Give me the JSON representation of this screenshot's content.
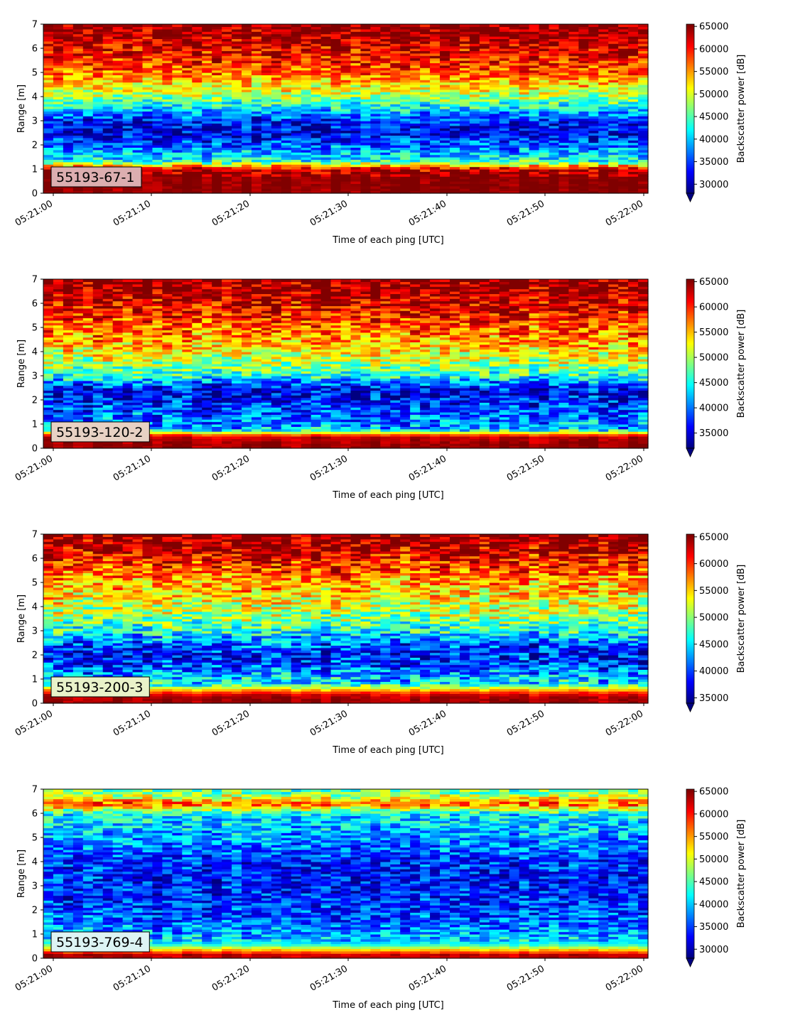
{
  "chart_data": [
    {
      "type": "heatmap",
      "station_label": "55193-67-1",
      "station_label_bg": "#dcaeb0",
      "xlabel": "Time of each ping [UTC]",
      "ylabel": "Range [m]",
      "colorbar_label": "Backscatter power [dB]",
      "colormap": "jet",
      "x_tick_labels": [
        "05:21:00",
        "05:21:10",
        "05:21:20",
        "05:21:30",
        "05:21:40",
        "05:21:50",
        "05:22:00"
      ],
      "y_ticks": [
        0,
        1,
        2,
        3,
        4,
        5,
        6,
        7
      ],
      "xlim": [
        "05:20:59",
        "05:22:00"
      ],
      "ylim": [
        0,
        7
      ],
      "colorbar_ticks": [
        30000,
        35000,
        40000,
        45000,
        50000,
        55000,
        60000,
        65000
      ],
      "clim": [
        28000,
        65500
      ],
      "colorbar_extend": "min",
      "profile": [
        {
          "range_m": 0.2,
          "value": 64800
        },
        {
          "range_m": 0.6,
          "value": 65000
        },
        {
          "range_m": 1.0,
          "value": 63500
        },
        {
          "range_m": 1.3,
          "value": 44000
        },
        {
          "range_m": 1.6,
          "value": 40000
        },
        {
          "range_m": 2.0,
          "value": 36000
        },
        {
          "range_m": 2.5,
          "value": 31500
        },
        {
          "range_m": 3.0,
          "value": 33500
        },
        {
          "range_m": 3.5,
          "value": 41000
        },
        {
          "range_m": 4.0,
          "value": 47500
        },
        {
          "range_m": 4.5,
          "value": 52500
        },
        {
          "range_m": 5.0,
          "value": 57000
        },
        {
          "range_m": 5.5,
          "value": 60000
        },
        {
          "range_m": 6.0,
          "value": 61500
        },
        {
          "range_m": 6.5,
          "value": 64000
        },
        {
          "range_m": 7.0,
          "value": 65000
        }
      ]
    },
    {
      "type": "heatmap",
      "station_label": "55193-120-2",
      "station_label_bg": "#e8d2c4",
      "xlabel": "Time of each ping [UTC]",
      "ylabel": "Range [m]",
      "colorbar_label": "Backscatter power [dB]",
      "colormap": "jet",
      "x_tick_labels": [
        "05:21:00",
        "05:21:10",
        "05:21:20",
        "05:21:30",
        "05:21:40",
        "05:21:50",
        "05:22:00"
      ],
      "y_ticks": [
        0,
        1,
        2,
        3,
        4,
        5,
        6,
        7
      ],
      "xlim": [
        "05:20:59",
        "05:22:00"
      ],
      "ylim": [
        0,
        7
      ],
      "colorbar_ticks": [
        35000,
        40000,
        45000,
        50000,
        55000,
        60000,
        65000
      ],
      "clim": [
        32000,
        65500
      ],
      "colorbar_extend": "min",
      "profile": [
        {
          "range_m": 0.2,
          "value": 64500
        },
        {
          "range_m": 0.5,
          "value": 63000
        },
        {
          "range_m": 0.8,
          "value": 42000
        },
        {
          "range_m": 1.2,
          "value": 40000
        },
        {
          "range_m": 1.6,
          "value": 38500
        },
        {
          "range_m": 2.0,
          "value": 37000
        },
        {
          "range_m": 2.4,
          "value": 35000
        },
        {
          "range_m": 3.0,
          "value": 45500
        },
        {
          "range_m": 3.5,
          "value": 50000
        },
        {
          "range_m": 4.0,
          "value": 53000
        },
        {
          "range_m": 4.5,
          "value": 56500
        },
        {
          "range_m": 5.0,
          "value": 58000
        },
        {
          "range_m": 5.5,
          "value": 60500
        },
        {
          "range_m": 6.0,
          "value": 62500
        },
        {
          "range_m": 6.5,
          "value": 64500
        },
        {
          "range_m": 7.0,
          "value": 65000
        }
      ]
    },
    {
      "type": "heatmap",
      "station_label": "55193-200-3",
      "station_label_bg": "#e9f2c9",
      "xlabel": "Time of each ping [UTC]",
      "ylabel": "Range [m]",
      "colorbar_label": "Backscatter power [dB]",
      "colormap": "jet",
      "x_tick_labels": [
        "05:21:00",
        "05:21:10",
        "05:21:20",
        "05:21:30",
        "05:21:40",
        "05:21:50",
        "05:22:00"
      ],
      "y_ticks": [
        0,
        1,
        2,
        3,
        4,
        5,
        6,
        7
      ],
      "xlim": [
        "05:20:59",
        "05:22:00"
      ],
      "ylim": [
        0,
        7
      ],
      "colorbar_ticks": [
        35000,
        40000,
        45000,
        50000,
        55000,
        60000,
        65000
      ],
      "clim": [
        34000,
        65500
      ],
      "colorbar_extend": "min",
      "profile": [
        {
          "range_m": 0.2,
          "value": 64500
        },
        {
          "range_m": 0.4,
          "value": 62000
        },
        {
          "range_m": 0.8,
          "value": 46000
        },
        {
          "range_m": 1.2,
          "value": 42500
        },
        {
          "range_m": 1.6,
          "value": 40000
        },
        {
          "range_m": 2.0,
          "value": 38000
        },
        {
          "range_m": 2.5,
          "value": 41000
        },
        {
          "range_m": 3.0,
          "value": 46500
        },
        {
          "range_m": 3.5,
          "value": 50000
        },
        {
          "range_m": 4.0,
          "value": 52000
        },
        {
          "range_m": 4.5,
          "value": 54500
        },
        {
          "range_m": 5.0,
          "value": 56500
        },
        {
          "range_m": 5.5,
          "value": 59000
        },
        {
          "range_m": 6.0,
          "value": 61500
        },
        {
          "range_m": 6.5,
          "value": 64000
        },
        {
          "range_m": 7.0,
          "value": 65000
        }
      ]
    },
    {
      "type": "heatmap",
      "station_label": "55193-769-4",
      "station_label_bg": "#ddf4f4",
      "xlabel": "Time of each ping [UTC]",
      "ylabel": "Range [m]",
      "colorbar_label": "Backscatter power [dB]",
      "colormap": "jet",
      "x_tick_labels": [
        "05:21:00",
        "05:21:10",
        "05:21:20",
        "05:21:30",
        "05:21:40",
        "05:21:50",
        "05:22:00"
      ],
      "y_ticks": [
        0,
        1,
        2,
        3,
        4,
        5,
        6,
        7
      ],
      "xlim": [
        "05:20:59",
        "05:22:00"
      ],
      "ylim": [
        0,
        7
      ],
      "colorbar_ticks": [
        30000,
        35000,
        40000,
        45000,
        50000,
        55000,
        60000,
        65000
      ],
      "clim": [
        28000,
        65500
      ],
      "colorbar_extend": "min",
      "profile": [
        {
          "range_m": 0.15,
          "value": 63000
        },
        {
          "range_m": 0.3,
          "value": 56000
        },
        {
          "range_m": 0.6,
          "value": 42000
        },
        {
          "range_m": 1.0,
          "value": 38500
        },
        {
          "range_m": 1.5,
          "value": 36500
        },
        {
          "range_m": 2.0,
          "value": 35000
        },
        {
          "range_m": 2.5,
          "value": 34000
        },
        {
          "range_m": 3.0,
          "value": 33500
        },
        {
          "range_m": 3.5,
          "value": 33500
        },
        {
          "range_m": 4.0,
          "value": 34500
        },
        {
          "range_m": 4.5,
          "value": 36500
        },
        {
          "range_m": 5.0,
          "value": 38500
        },
        {
          "range_m": 5.5,
          "value": 40000
        },
        {
          "range_m": 6.0,
          "value": 42000
        },
        {
          "range_m": 6.4,
          "value": 58000
        },
        {
          "range_m": 6.8,
          "value": 47000
        },
        {
          "range_m": 7.0,
          "value": 45000
        }
      ]
    }
  ]
}
